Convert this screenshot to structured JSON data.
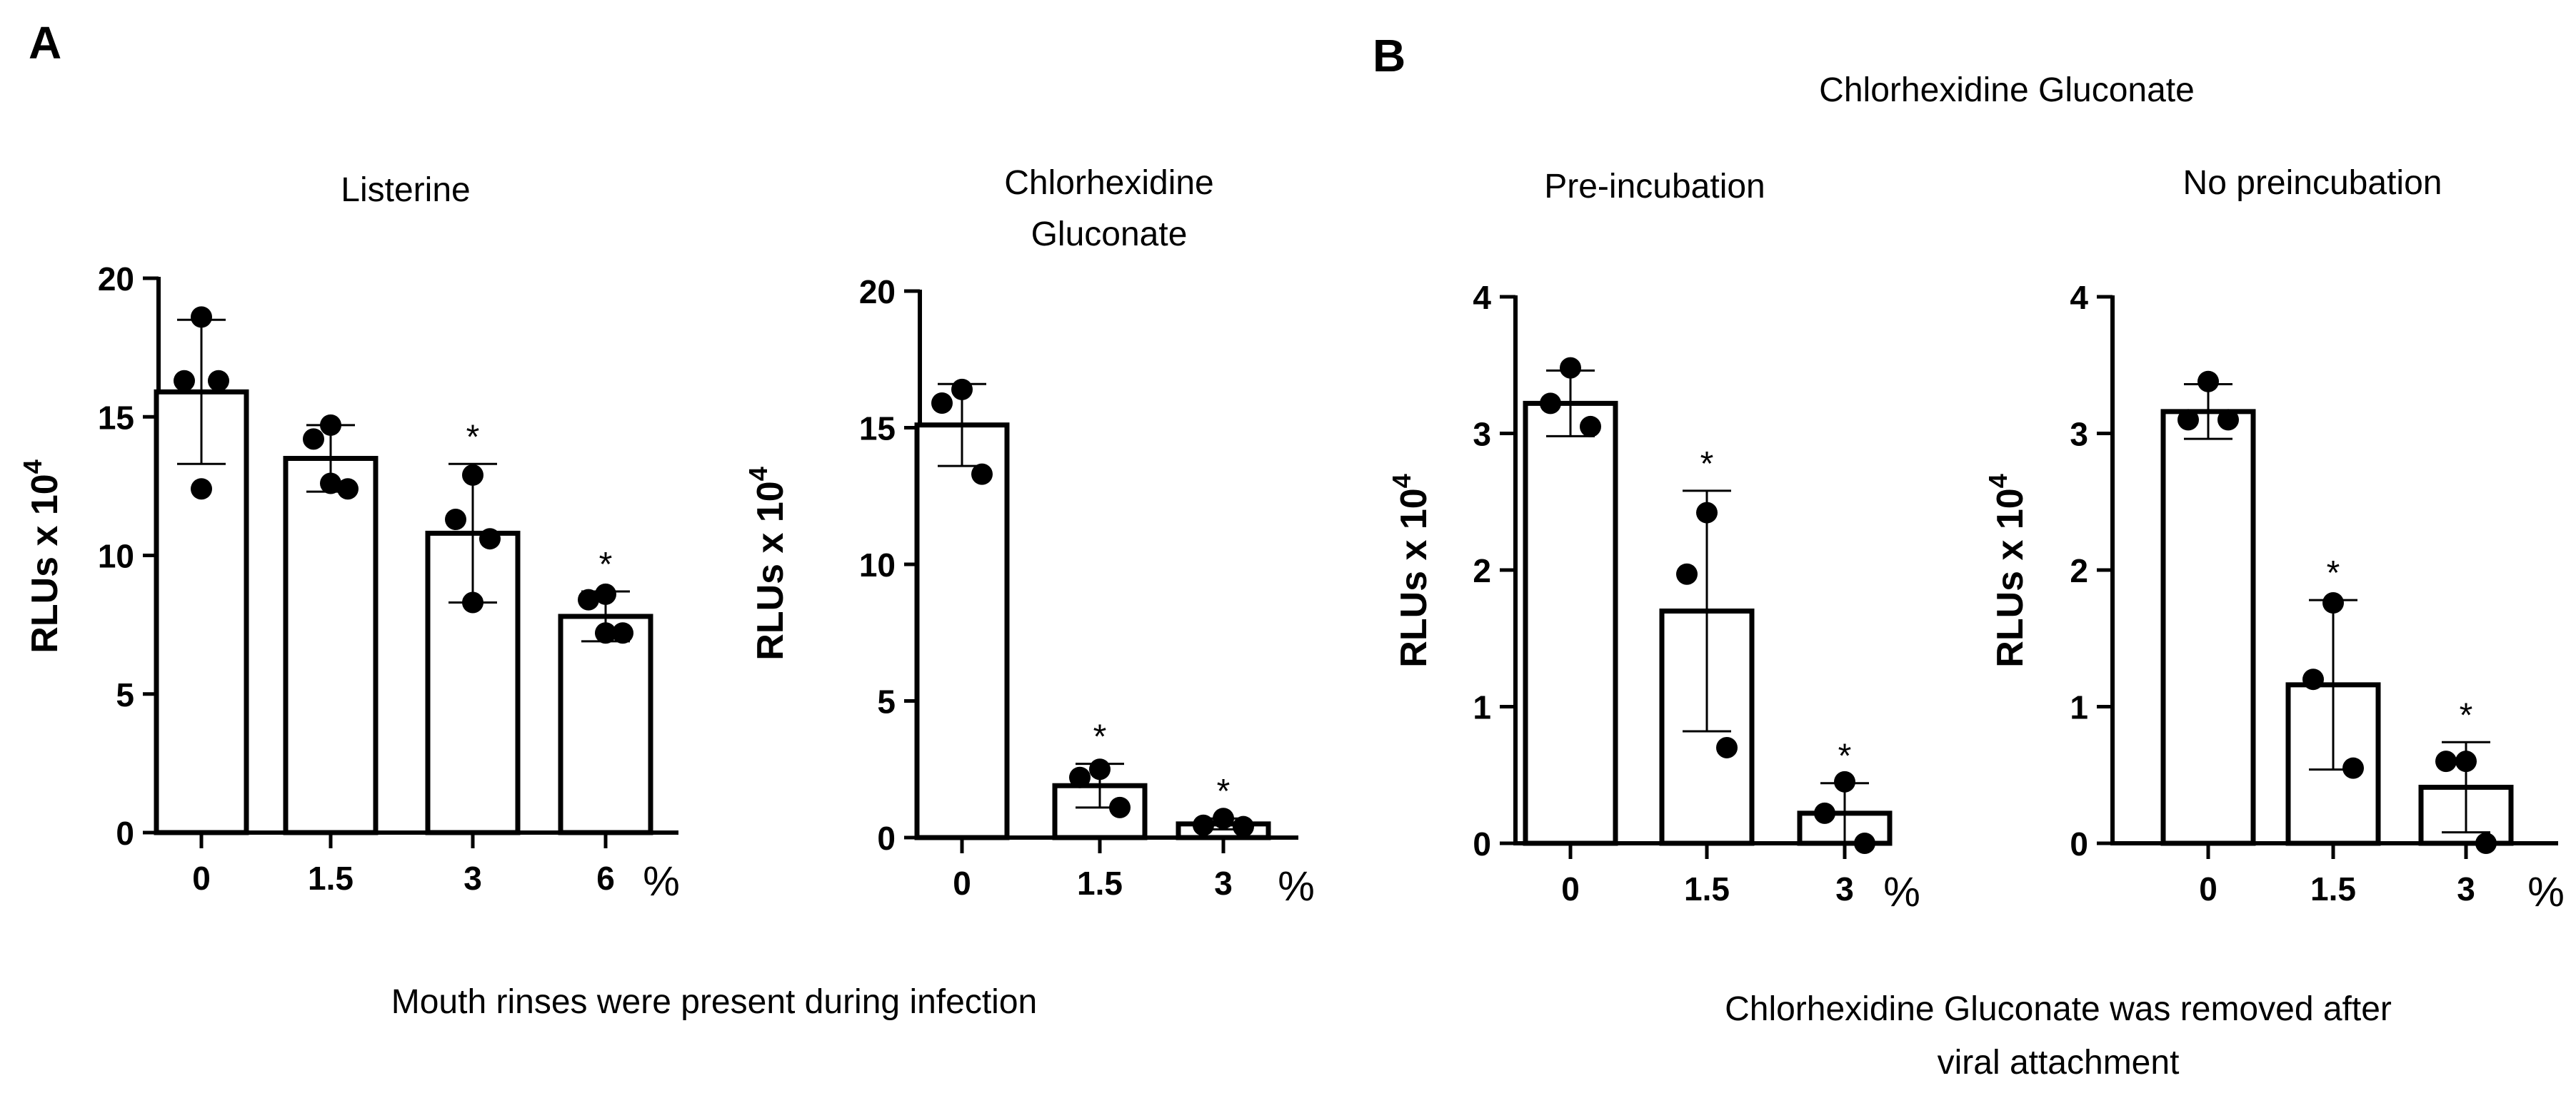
{
  "panel_labels": [
    "A",
    "B"
  ],
  "panel_b_title": "Chlorhexidine Gluconate",
  "caption_a": "Mouth rinses were present during infection",
  "caption_b_line1": "Chlorhexidine Gluconate was removed after",
  "caption_b_line2": "viral attachment",
  "colors": {
    "ink": "#000000",
    "bar_fill": "#ffffff",
    "background": "#ffffff"
  },
  "chart_data": [
    {
      "id": "listerine",
      "type": "bar",
      "title_lines": [
        "Listerine"
      ],
      "ylabel": "RLUs x 10",
      "ylabel_exponent": "4",
      "xunit": "%",
      "ylim": [
        0,
        20
      ],
      "yticks": [
        0,
        5,
        10,
        15,
        20
      ],
      "categories": [
        "0",
        "1.5",
        "3",
        "6"
      ],
      "values": [
        15.9,
        13.5,
        10.8,
        7.8
      ],
      "errors": [
        2.6,
        1.2,
        2.5,
        0.9
      ],
      "points": [
        [
          18.6,
          16.3,
          16.3,
          12.4
        ],
        [
          14.7,
          14.2,
          12.4,
          12.6
        ],
        [
          12.9,
          11.3,
          10.6,
          8.3
        ],
        [
          8.6,
          8.4,
          7.2,
          7.2
        ]
      ],
      "significance": [
        "",
        "",
        "*",
        "*"
      ]
    },
    {
      "id": "chg-a",
      "type": "bar",
      "title_lines": [
        "Chlorhexidine",
        "Gluconate"
      ],
      "ylabel": "RLUs x 10",
      "ylabel_exponent": "4",
      "xunit": "%",
      "ylim": [
        0,
        20
      ],
      "yticks": [
        0,
        5,
        10,
        15,
        20
      ],
      "categories": [
        "0",
        "1.5",
        "3"
      ],
      "values": [
        15.1,
        1.9,
        0.5
      ],
      "errors": [
        1.5,
        0.8,
        0.2
      ],
      "points": [
        [
          16.4,
          15.9,
          13.3
        ],
        [
          2.5,
          2.2,
          1.1
        ],
        [
          0.7,
          0.45,
          0.4
        ]
      ],
      "significance": [
        "",
        "*",
        "*"
      ]
    },
    {
      "id": "pre-incubation",
      "type": "bar",
      "title_lines": [
        "Pre-incubation"
      ],
      "ylabel": "RLUs x 10",
      "ylabel_exponent": "4",
      "xunit": "%",
      "ylim": [
        0,
        4
      ],
      "yticks": [
        0,
        1,
        2,
        3,
        4
      ],
      "categories": [
        "0",
        "1.5",
        "3"
      ],
      "values": [
        3.22,
        1.7,
        0.22
      ],
      "errors": [
        0.24,
        0.88,
        0.22
      ],
      "points": [
        [
          3.48,
          3.22,
          3.05
        ],
        [
          2.42,
          1.97,
          0.7
        ],
        [
          0.45,
          0.22,
          0.0
        ]
      ],
      "significance": [
        "",
        "*",
        "*"
      ]
    },
    {
      "id": "no-preincubation",
      "type": "bar",
      "title_lines": [
        "No preincubation"
      ],
      "ylabel": "RLUs x 10",
      "ylabel_exponent": "4",
      "xunit": "%",
      "ylim": [
        0,
        4
      ],
      "yticks": [
        0,
        1,
        2,
        3,
        4
      ],
      "categories": [
        "0",
        "1.5",
        "3"
      ],
      "values": [
        3.16,
        1.16,
        0.41
      ],
      "errors": [
        0.2,
        0.62,
        0.33
      ],
      "points": [
        [
          3.38,
          3.1,
          3.1
        ],
        [
          1.76,
          1.2,
          0.55
        ],
        [
          0.6,
          0.6,
          0.0
        ]
      ],
      "significance": [
        "",
        "*",
        "*"
      ]
    }
  ]
}
